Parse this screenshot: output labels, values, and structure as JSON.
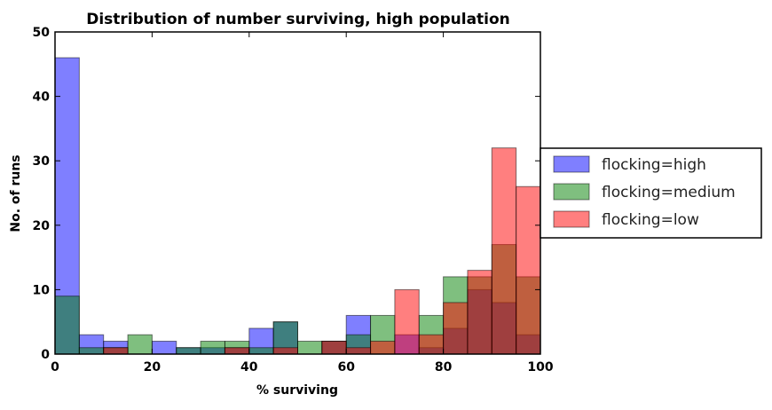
{
  "chart_data": {
    "type": "bar",
    "title": "Distribution of number surviving, high population",
    "xlabel": "% surviving",
    "ylabel": "No. of runs",
    "xlim": [
      0,
      100
    ],
    "ylim": [
      0,
      50
    ],
    "xticks": [
      0,
      20,
      40,
      60,
      80,
      100
    ],
    "yticks": [
      0,
      10,
      20,
      30,
      40,
      50
    ],
    "bin_edges": [
      0,
      5,
      10,
      15,
      20,
      25,
      30,
      35,
      40,
      45,
      50,
      55,
      60,
      65,
      70,
      75,
      80,
      85,
      90,
      95,
      100
    ],
    "series": [
      {
        "name": "flocking=high",
        "color": "#0000ff",
        "values": [
          46,
          3,
          2,
          0,
          2,
          1,
          1,
          1,
          4,
          5,
          0,
          2,
          6,
          0,
          3,
          1,
          4,
          10,
          8,
          3
        ]
      },
      {
        "name": "flocking=medium",
        "color": "#008000",
        "values": [
          9,
          1,
          1,
          3,
          0,
          1,
          2,
          2,
          1,
          5,
          2,
          2,
          3,
          6,
          0,
          6,
          12,
          12,
          17,
          12
        ]
      },
      {
        "name": "flocking=low",
        "color": "#ff0000",
        "values": [
          0,
          0,
          1,
          0,
          0,
          0,
          0,
          1,
          0,
          1,
          0,
          2,
          1,
          2,
          10,
          3,
          8,
          13,
          32,
          26
        ]
      }
    ],
    "legend_position": "outside-right",
    "grid": false
  }
}
